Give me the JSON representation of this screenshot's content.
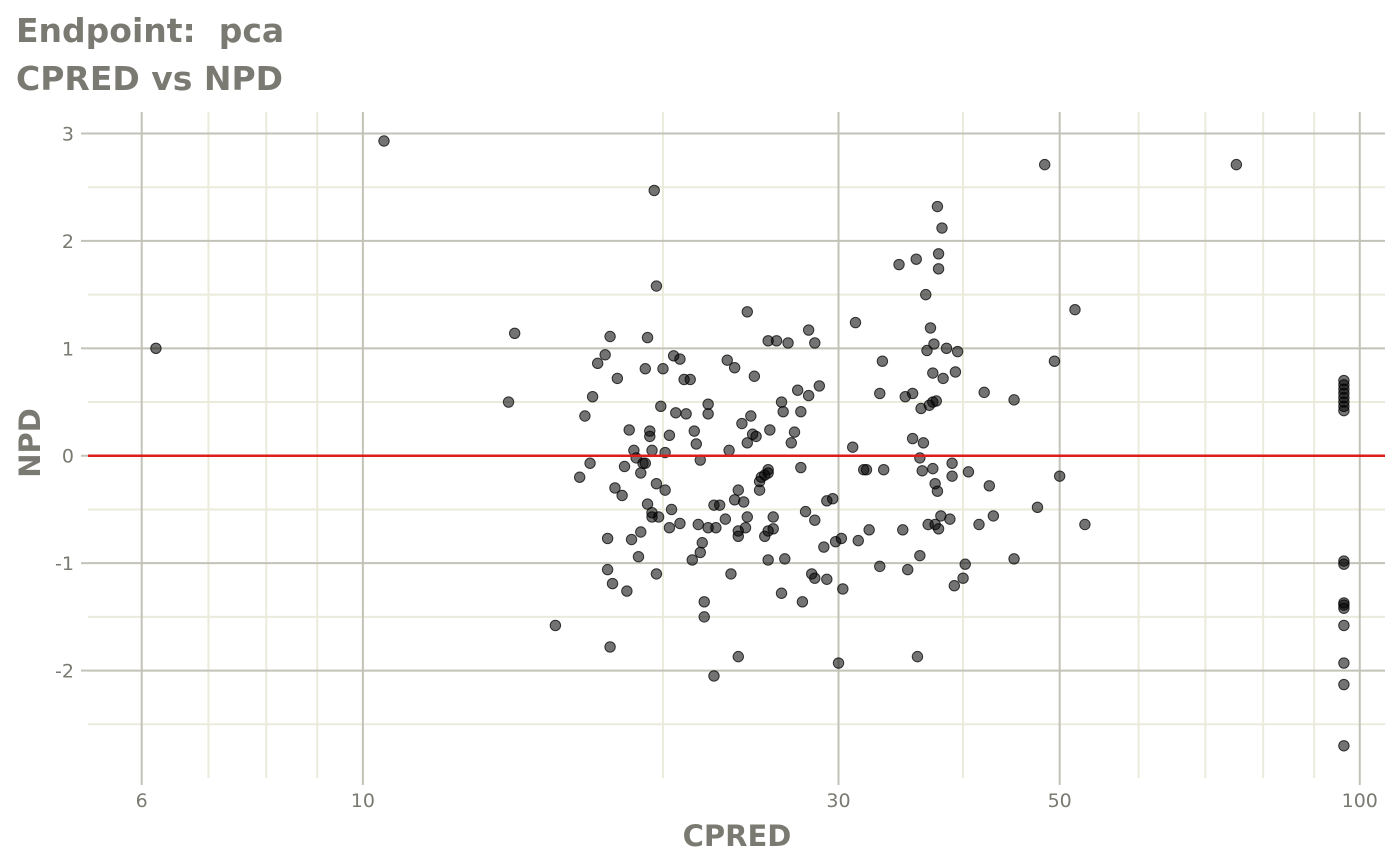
{
  "title_line1": "Endpoint:  pca",
  "title_line2": "CPRED vs NPD",
  "colors": {
    "major_grid": "#c2c2b8",
    "minor_grid": "#ebebdc",
    "reference_line": "#dd1c1c",
    "points": "#000000",
    "text": "#7a7a72"
  },
  "chart_data": {
    "type": "scatter",
    "xlabel": "CPRED",
    "ylabel": "NPD",
    "x_scale": "log10",
    "xlim": [
      5.3,
      106
    ],
    "ylim": [
      -3.0,
      3.2
    ],
    "x_ticks": [
      6,
      10,
      30,
      50,
      100
    ],
    "x_tick_labels": [
      "6",
      "10",
      "30",
      "50",
      "100"
    ],
    "x_minor_gridlines": [
      7,
      8,
      9,
      20,
      40,
      60,
      70,
      80,
      90
    ],
    "y_ticks": [
      3,
      2,
      1,
      0,
      -1,
      -2
    ],
    "y_tick_labels": [
      "3",
      "2",
      "1",
      "0",
      "-1",
      "-2"
    ],
    "y_minor_gridlines": [
      2.5,
      1.5,
      0.5,
      -0.5,
      -1.5,
      -2.5
    ],
    "reference_line_y": 0,
    "point_opacity": 0.55,
    "points": [
      [
        6.2,
        1.0
      ],
      [
        10.5,
        2.93
      ],
      [
        14.2,
        1.14
      ],
      [
        14.0,
        0.5
      ],
      [
        15.6,
        -1.58
      ],
      [
        16.5,
        -0.2
      ],
      [
        16.7,
        0.37
      ],
      [
        16.9,
        -0.07
      ],
      [
        17.0,
        0.55
      ],
      [
        17.2,
        0.86
      ],
      [
        17.5,
        0.94
      ],
      [
        17.6,
        -0.77
      ],
      [
        17.6,
        -1.06
      ],
      [
        17.7,
        1.11
      ],
      [
        17.8,
        -1.19
      ],
      [
        17.7,
        -1.78
      ],
      [
        17.9,
        -0.3
      ],
      [
        18.0,
        0.72
      ],
      [
        18.2,
        -0.37
      ],
      [
        18.3,
        -0.1
      ],
      [
        18.4,
        -1.26
      ],
      [
        18.5,
        0.24
      ],
      [
        18.6,
        -0.78
      ],
      [
        18.7,
        0.05
      ],
      [
        18.8,
        -0.02
      ],
      [
        18.9,
        -0.94
      ],
      [
        19.0,
        -0.16
      ],
      [
        19.0,
        -0.71
      ],
      [
        19.1,
        -0.07
      ],
      [
        19.2,
        -0.07
      ],
      [
        19.2,
        0.81
      ],
      [
        19.3,
        1.1
      ],
      [
        19.3,
        -0.45
      ],
      [
        19.4,
        0.23
      ],
      [
        19.4,
        0.18
      ],
      [
        19.5,
        -0.53
      ],
      [
        19.5,
        -0.57
      ],
      [
        19.5,
        0.05
      ],
      [
        19.6,
        2.47
      ],
      [
        19.7,
        -0.26
      ],
      [
        19.7,
        -1.1
      ],
      [
        19.7,
        1.58
      ],
      [
        19.8,
        -0.57
      ],
      [
        19.9,
        0.46
      ],
      [
        20.0,
        0.81
      ],
      [
        20.1,
        0.03
      ],
      [
        20.1,
        -0.32
      ],
      [
        20.3,
        0.19
      ],
      [
        20.3,
        -0.67
      ],
      [
        20.4,
        -0.5
      ],
      [
        20.5,
        0.93
      ],
      [
        20.6,
        0.4
      ],
      [
        20.8,
        0.9
      ],
      [
        20.8,
        -0.63
      ],
      [
        21.0,
        0.71
      ],
      [
        21.1,
        0.39
      ],
      [
        21.3,
        0.71
      ],
      [
        21.4,
        -0.97
      ],
      [
        21.5,
        0.23
      ],
      [
        21.6,
        0.11
      ],
      [
        21.7,
        -0.64
      ],
      [
        21.8,
        -0.9
      ],
      [
        21.9,
        -0.81
      ],
      [
        21.8,
        -0.04
      ],
      [
        22.0,
        -1.36
      ],
      [
        22.0,
        -1.5
      ],
      [
        22.2,
        0.48
      ],
      [
        22.2,
        0.39
      ],
      [
        22.2,
        -0.67
      ],
      [
        22.5,
        -0.46
      ],
      [
        22.5,
        -2.05
      ],
      [
        22.6,
        -0.67
      ],
      [
        22.8,
        -0.46
      ],
      [
        23.1,
        -0.59
      ],
      [
        23.2,
        0.89
      ],
      [
        23.3,
        0.05
      ],
      [
        23.4,
        -1.1
      ],
      [
        23.6,
        -0.41
      ],
      [
        23.6,
        0.82
      ],
      [
        23.8,
        -0.32
      ],
      [
        23.8,
        -0.75
      ],
      [
        23.8,
        -0.7
      ],
      [
        23.8,
        -1.87
      ],
      [
        24.0,
        0.3
      ],
      [
        24.1,
        -0.43
      ],
      [
        24.2,
        -0.67
      ],
      [
        24.3,
        0.12
      ],
      [
        24.3,
        -0.57
      ],
      [
        24.3,
        1.34
      ],
      [
        24.5,
        0.37
      ],
      [
        24.6,
        0.2
      ],
      [
        24.7,
        0.74
      ],
      [
        24.8,
        0.18
      ],
      [
        25.0,
        -0.24
      ],
      [
        25.0,
        -0.32
      ],
      [
        25.1,
        -0.2
      ],
      [
        25.3,
        -0.18
      ],
      [
        25.3,
        -0.75
      ],
      [
        25.5,
        -0.16
      ],
      [
        25.5,
        -0.13
      ],
      [
        25.5,
        -0.97
      ],
      [
        25.5,
        -0.7
      ],
      [
        25.5,
        1.07
      ],
      [
        25.6,
        0.24
      ],
      [
        25.8,
        -0.57
      ],
      [
        25.8,
        -0.68
      ],
      [
        26.0,
        1.07
      ],
      [
        26.3,
        0.5
      ],
      [
        26.4,
        0.41
      ],
      [
        26.3,
        -1.28
      ],
      [
        26.5,
        -0.96
      ],
      [
        26.7,
        1.05
      ],
      [
        26.9,
        0.12
      ],
      [
        27.1,
        0.22
      ],
      [
        27.3,
        0.61
      ],
      [
        27.5,
        0.41
      ],
      [
        27.5,
        -0.11
      ],
      [
        27.6,
        -1.36
      ],
      [
        27.8,
        -0.52
      ],
      [
        28.0,
        0.56
      ],
      [
        28.0,
        1.17
      ],
      [
        28.2,
        -1.1
      ],
      [
        28.4,
        -1.14
      ],
      [
        28.4,
        -0.6
      ],
      [
        28.4,
        1.05
      ],
      [
        28.7,
        0.65
      ],
      [
        29.0,
        -0.85
      ],
      [
        29.2,
        -0.42
      ],
      [
        29.2,
        -1.15
      ],
      [
        29.6,
        -0.4
      ],
      [
        29.8,
        -0.8
      ],
      [
        30.0,
        -1.93
      ],
      [
        30.2,
        -0.77
      ],
      [
        30.3,
        -1.24
      ],
      [
        31.0,
        0.08
      ],
      [
        31.2,
        1.24
      ],
      [
        31.4,
        -0.79
      ],
      [
        31.8,
        -0.13
      ],
      [
        32.0,
        -0.13
      ],
      [
        32.2,
        -0.69
      ],
      [
        33.0,
        0.58
      ],
      [
        33.0,
        -1.03
      ],
      [
        33.2,
        0.88
      ],
      [
        33.3,
        -0.13
      ],
      [
        34.5,
        1.78
      ],
      [
        34.8,
        -0.69
      ],
      [
        35.0,
        0.55
      ],
      [
        35.2,
        -1.06
      ],
      [
        35.6,
        0.16
      ],
      [
        35.6,
        0.58
      ],
      [
        35.9,
        1.83
      ],
      [
        36.0,
        -1.87
      ],
      [
        36.2,
        -0.02
      ],
      [
        36.2,
        -0.93
      ],
      [
        36.3,
        0.44
      ],
      [
        36.5,
        0.12
      ],
      [
        36.4,
        -0.14
      ],
      [
        36.7,
        1.5
      ],
      [
        36.8,
        0.98
      ],
      [
        36.9,
        -0.64
      ],
      [
        37.0,
        0.47
      ],
      [
        37.1,
        1.19
      ],
      [
        37.3,
        0.5
      ],
      [
        37.3,
        0.77
      ],
      [
        37.3,
        -0.12
      ],
      [
        37.4,
        1.04
      ],
      [
        37.5,
        -0.26
      ],
      [
        37.5,
        -0.64
      ],
      [
        37.6,
        0.51
      ],
      [
        37.7,
        -0.33
      ],
      [
        37.7,
        2.32
      ],
      [
        37.8,
        -0.68
      ],
      [
        37.8,
        1.88
      ],
      [
        37.8,
        1.74
      ],
      [
        38.0,
        -0.56
      ],
      [
        38.1,
        2.12
      ],
      [
        38.2,
        0.72
      ],
      [
        38.5,
        1.0
      ],
      [
        38.8,
        -0.59
      ],
      [
        39.0,
        -0.07
      ],
      [
        39.0,
        -0.19
      ],
      [
        39.2,
        -1.21
      ],
      [
        39.3,
        0.78
      ],
      [
        39.5,
        0.97
      ],
      [
        40.0,
        -1.14
      ],
      [
        40.2,
        -1.01
      ],
      [
        40.5,
        -0.15
      ],
      [
        41.5,
        -0.64
      ],
      [
        42.0,
        0.59
      ],
      [
        42.5,
        -0.28
      ],
      [
        42.9,
        -0.56
      ],
      [
        45.0,
        -0.96
      ],
      [
        45.0,
        0.52
      ],
      [
        47.5,
        -0.48
      ],
      [
        48.3,
        2.71
      ],
      [
        49.4,
        0.88
      ],
      [
        50.0,
        -0.19
      ],
      [
        51.8,
        1.36
      ],
      [
        53.0,
        -0.64
      ],
      [
        75.2,
        2.71
      ],
      [
        96.4,
        0.7
      ],
      [
        96.4,
        0.66
      ],
      [
        96.4,
        0.62
      ],
      [
        96.4,
        0.58
      ],
      [
        96.4,
        0.54
      ],
      [
        96.4,
        0.5
      ],
      [
        96.4,
        0.46
      ],
      [
        96.4,
        0.42
      ],
      [
        96.4,
        -0.98
      ],
      [
        96.4,
        -1.01
      ],
      [
        96.4,
        -1.37
      ],
      [
        96.4,
        -1.39
      ],
      [
        96.4,
        -1.42
      ],
      [
        96.4,
        -1.58
      ],
      [
        96.4,
        -1.93
      ],
      [
        96.4,
        -2.13
      ],
      [
        96.4,
        -2.7
      ]
    ]
  }
}
